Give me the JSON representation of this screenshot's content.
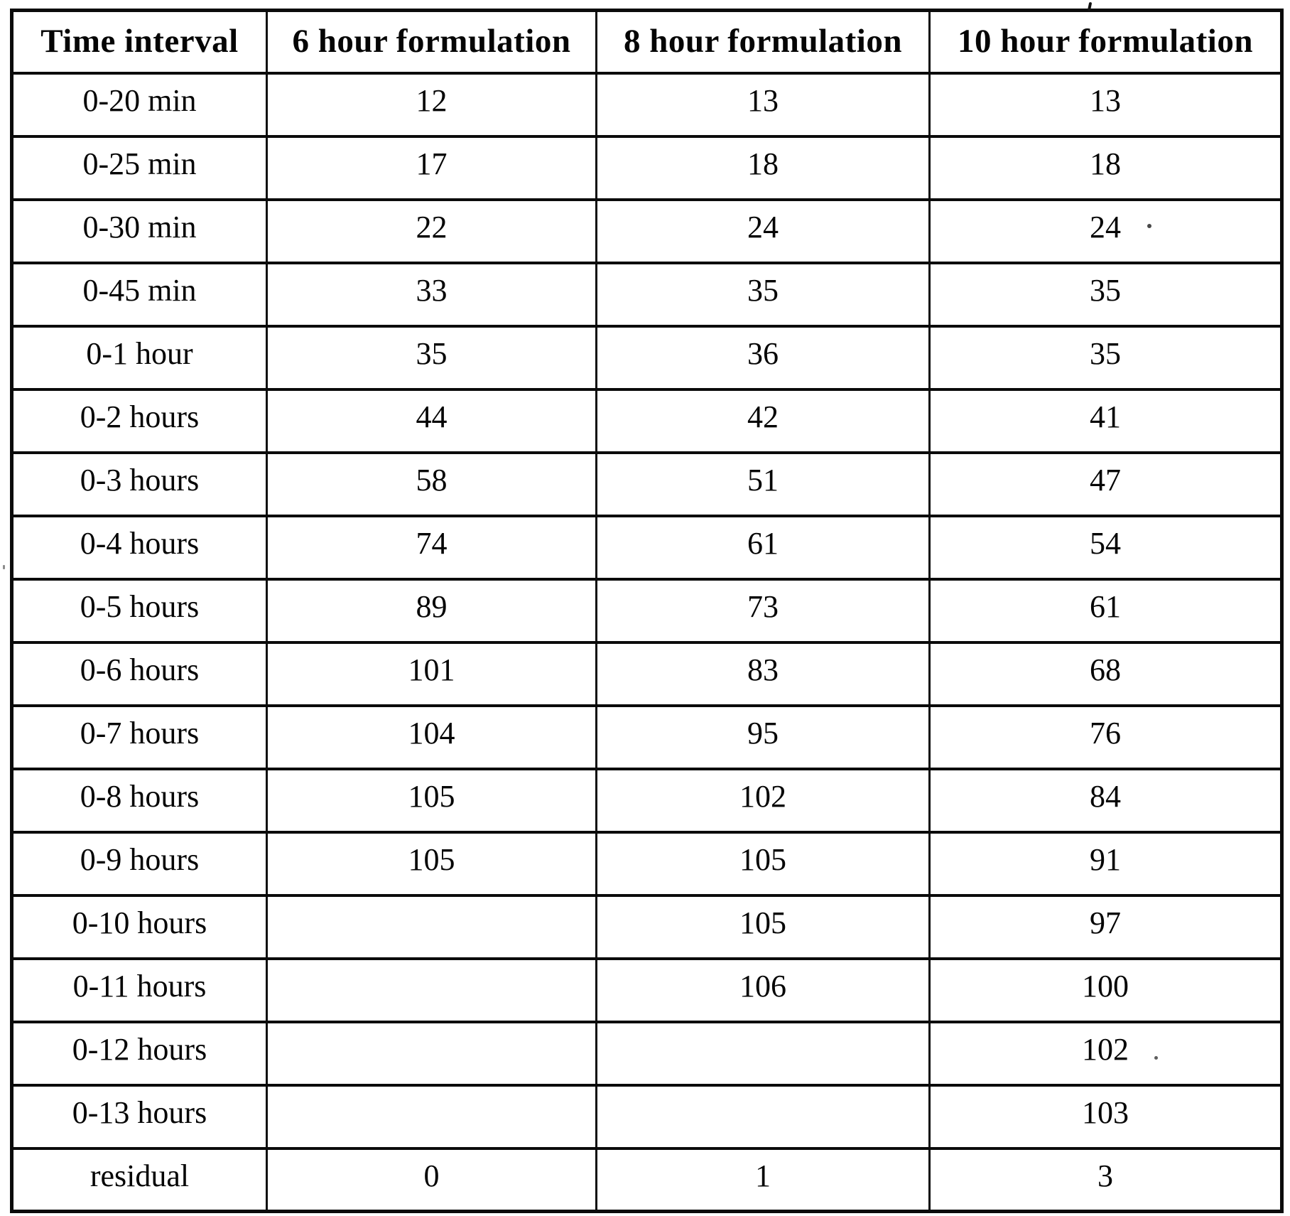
{
  "table": {
    "header": [
      "Time interval",
      "6 hour formulation",
      "8 hour formulation",
      "10 hour formulation"
    ],
    "rows": [
      [
        "0-20 min",
        "12",
        "13",
        "13"
      ],
      [
        "0-25 min",
        "17",
        "18",
        "18"
      ],
      [
        "0-30 min",
        "22",
        "24",
        "24"
      ],
      [
        "0-45 min",
        "33",
        "35",
        "35"
      ],
      [
        "0-1 hour",
        "35",
        "36",
        "35"
      ],
      [
        "0-2 hours",
        "44",
        "42",
        "41"
      ],
      [
        "0-3 hours",
        "58",
        "51",
        "47"
      ],
      [
        "0-4 hours",
        "74",
        "61",
        "54"
      ],
      [
        "0-5 hours",
        "89",
        "73",
        "61"
      ],
      [
        "0-6 hours",
        "101",
        "83",
        "68"
      ],
      [
        "0-7 hours",
        "104",
        "95",
        "76"
      ],
      [
        "0-8 hours",
        "105",
        "102",
        "84"
      ],
      [
        "0-9 hours",
        "105",
        "105",
        "91"
      ],
      [
        "0-10 hours",
        "",
        "105",
        "97"
      ],
      [
        "0-11 hours",
        "",
        "106",
        "100"
      ],
      [
        "0-12 hours",
        "",
        "",
        "102"
      ],
      [
        "0-13 hours",
        "",
        "",
        "103"
      ],
      [
        "residual",
        "0",
        "1",
        "3"
      ]
    ]
  }
}
